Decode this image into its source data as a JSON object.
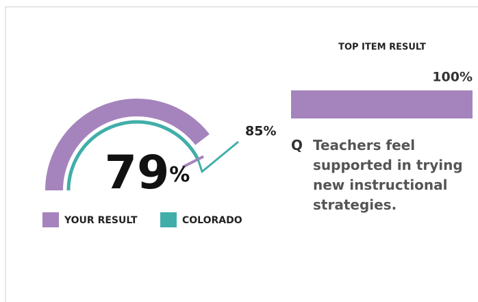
{
  "chart_data": [
    {
      "type": "gauge",
      "ylim": [
        0,
        100
      ],
      "series": [
        {
          "name": "YOUR RESULT",
          "color": "#a584bd",
          "values": [
            79
          ],
          "value_labels": [
            "79%"
          ]
        },
        {
          "name": "COLORADO",
          "color": "#41aea9",
          "values": [
            85
          ],
          "value_labels": [
            "85%"
          ]
        }
      ]
    },
    {
      "type": "bar",
      "title": "TOP ITEM RESULT",
      "xlim": [
        0,
        100
      ],
      "color": "#a584bd",
      "question_marker": "Q",
      "categories": [
        "Teachers feel supported in trying new instructional strategies."
      ],
      "values": [
        100
      ],
      "value_labels": [
        "100%"
      ]
    }
  ]
}
